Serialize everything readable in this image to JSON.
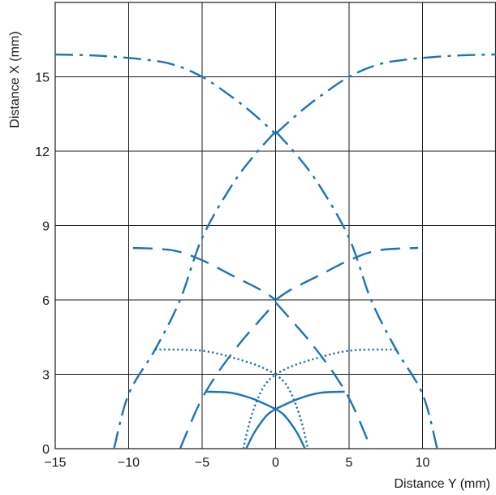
{
  "chart_data": {
    "type": "line",
    "title": "",
    "xlabel": "Distance Y (mm)",
    "ylabel": "Distance X (mm)",
    "xlim": [
      -15,
      15
    ],
    "ylim": [
      0,
      18
    ],
    "xticks": [
      -15,
      -10,
      -5,
      0,
      5,
      10
    ],
    "yticks": [
      0,
      3,
      6,
      9,
      12,
      15
    ],
    "xtick_labels": [
      "−15",
      "−10",
      "−5",
      "0",
      "5",
      "10"
    ],
    "ytick_labels": [
      "0",
      "3",
      "6",
      "9",
      "12",
      "15"
    ],
    "grid": true,
    "line_color": "#1a73b8",
    "series": [
      {
        "style": "solid",
        "x": [
          -2,
          -1.5,
          -1,
          -0.5,
          0
        ],
        "y": [
          0,
          0.6,
          1.05,
          1.4,
          1.6
        ]
      },
      {
        "style": "solid",
        "x": [
          0,
          0.5,
          1,
          1.5,
          2
        ],
        "y": [
          1.6,
          1.4,
          1.05,
          0.6,
          0
        ]
      },
      {
        "style": "solid",
        "x": [
          -4.7,
          -3,
          -1.5,
          0
        ],
        "y": [
          2.3,
          2.25,
          2.0,
          1.6
        ]
      },
      {
        "style": "solid",
        "x": [
          0,
          1.5,
          3,
          4.7
        ],
        "y": [
          1.6,
          2.0,
          2.25,
          2.3
        ]
      },
      {
        "style": "dotted",
        "x": [
          -2.2,
          -1.8,
          -1.3,
          -0.7,
          0
        ],
        "y": [
          0,
          1.0,
          1.9,
          2.6,
          3.0
        ]
      },
      {
        "style": "dotted",
        "x": [
          0,
          0.7,
          1.3,
          1.8,
          2.2
        ],
        "y": [
          3.0,
          2.6,
          1.9,
          1.0,
          0
        ]
      },
      {
        "style": "dotted",
        "x": [
          -8.2,
          -5,
          -2.5,
          -1,
          0
        ],
        "y": [
          4.0,
          3.95,
          3.6,
          3.3,
          3.0
        ]
      },
      {
        "style": "dotted",
        "x": [
          0,
          1,
          2.5,
          5,
          8.2
        ],
        "y": [
          3.0,
          3.3,
          3.6,
          3.95,
          4.0
        ]
      },
      {
        "style": "longdash",
        "x": [
          -6.5,
          -5.2,
          -4,
          -2.5,
          -1.2,
          0
        ],
        "y": [
          0,
          1.8,
          3.0,
          4.2,
          5.1,
          5.9
        ]
      },
      {
        "style": "longdash",
        "x": [
          0,
          1.2,
          2.5,
          4,
          5.2,
          6.5
        ],
        "y": [
          5.9,
          5.1,
          4.2,
          3.0,
          1.8,
          0
        ]
      },
      {
        "style": "longdash",
        "x": [
          -9.7,
          -7,
          -5,
          -3,
          -1,
          0
        ],
        "y": [
          8.1,
          8.0,
          7.6,
          7.0,
          6.4,
          6.0
        ]
      },
      {
        "style": "longdash",
        "x": [
          0,
          1,
          3,
          5,
          7,
          9.7
        ],
        "y": [
          6.0,
          6.4,
          7.0,
          7.6,
          8.0,
          8.1
        ]
      },
      {
        "style": "dashdot",
        "x": [
          -11,
          -10,
          -8.2,
          -6.5,
          -5,
          -3,
          -1.5,
          0
        ],
        "y": [
          0,
          2.2,
          4.0,
          6.0,
          8.5,
          10.6,
          11.8,
          12.8
        ]
      },
      {
        "style": "dashdot",
        "x": [
          0,
          1.5,
          3,
          5,
          6.5,
          8.2,
          10,
          11
        ],
        "y": [
          12.8,
          11.8,
          10.6,
          8.5,
          6.0,
          4.0,
          2.2,
          0
        ]
      },
      {
        "style": "dashdot",
        "x": [
          -15,
          -12,
          -9,
          -7,
          -5,
          -3,
          -1.5,
          0
        ],
        "y": [
          15.9,
          15.85,
          15.7,
          15.5,
          15.0,
          14.2,
          13.5,
          12.7
        ]
      },
      {
        "style": "dashdot",
        "x": [
          0,
          1.5,
          3,
          5,
          7,
          9,
          12,
          15
        ],
        "y": [
          12.7,
          13.5,
          14.2,
          15.0,
          15.5,
          15.7,
          15.85,
          15.9
        ]
      }
    ]
  }
}
